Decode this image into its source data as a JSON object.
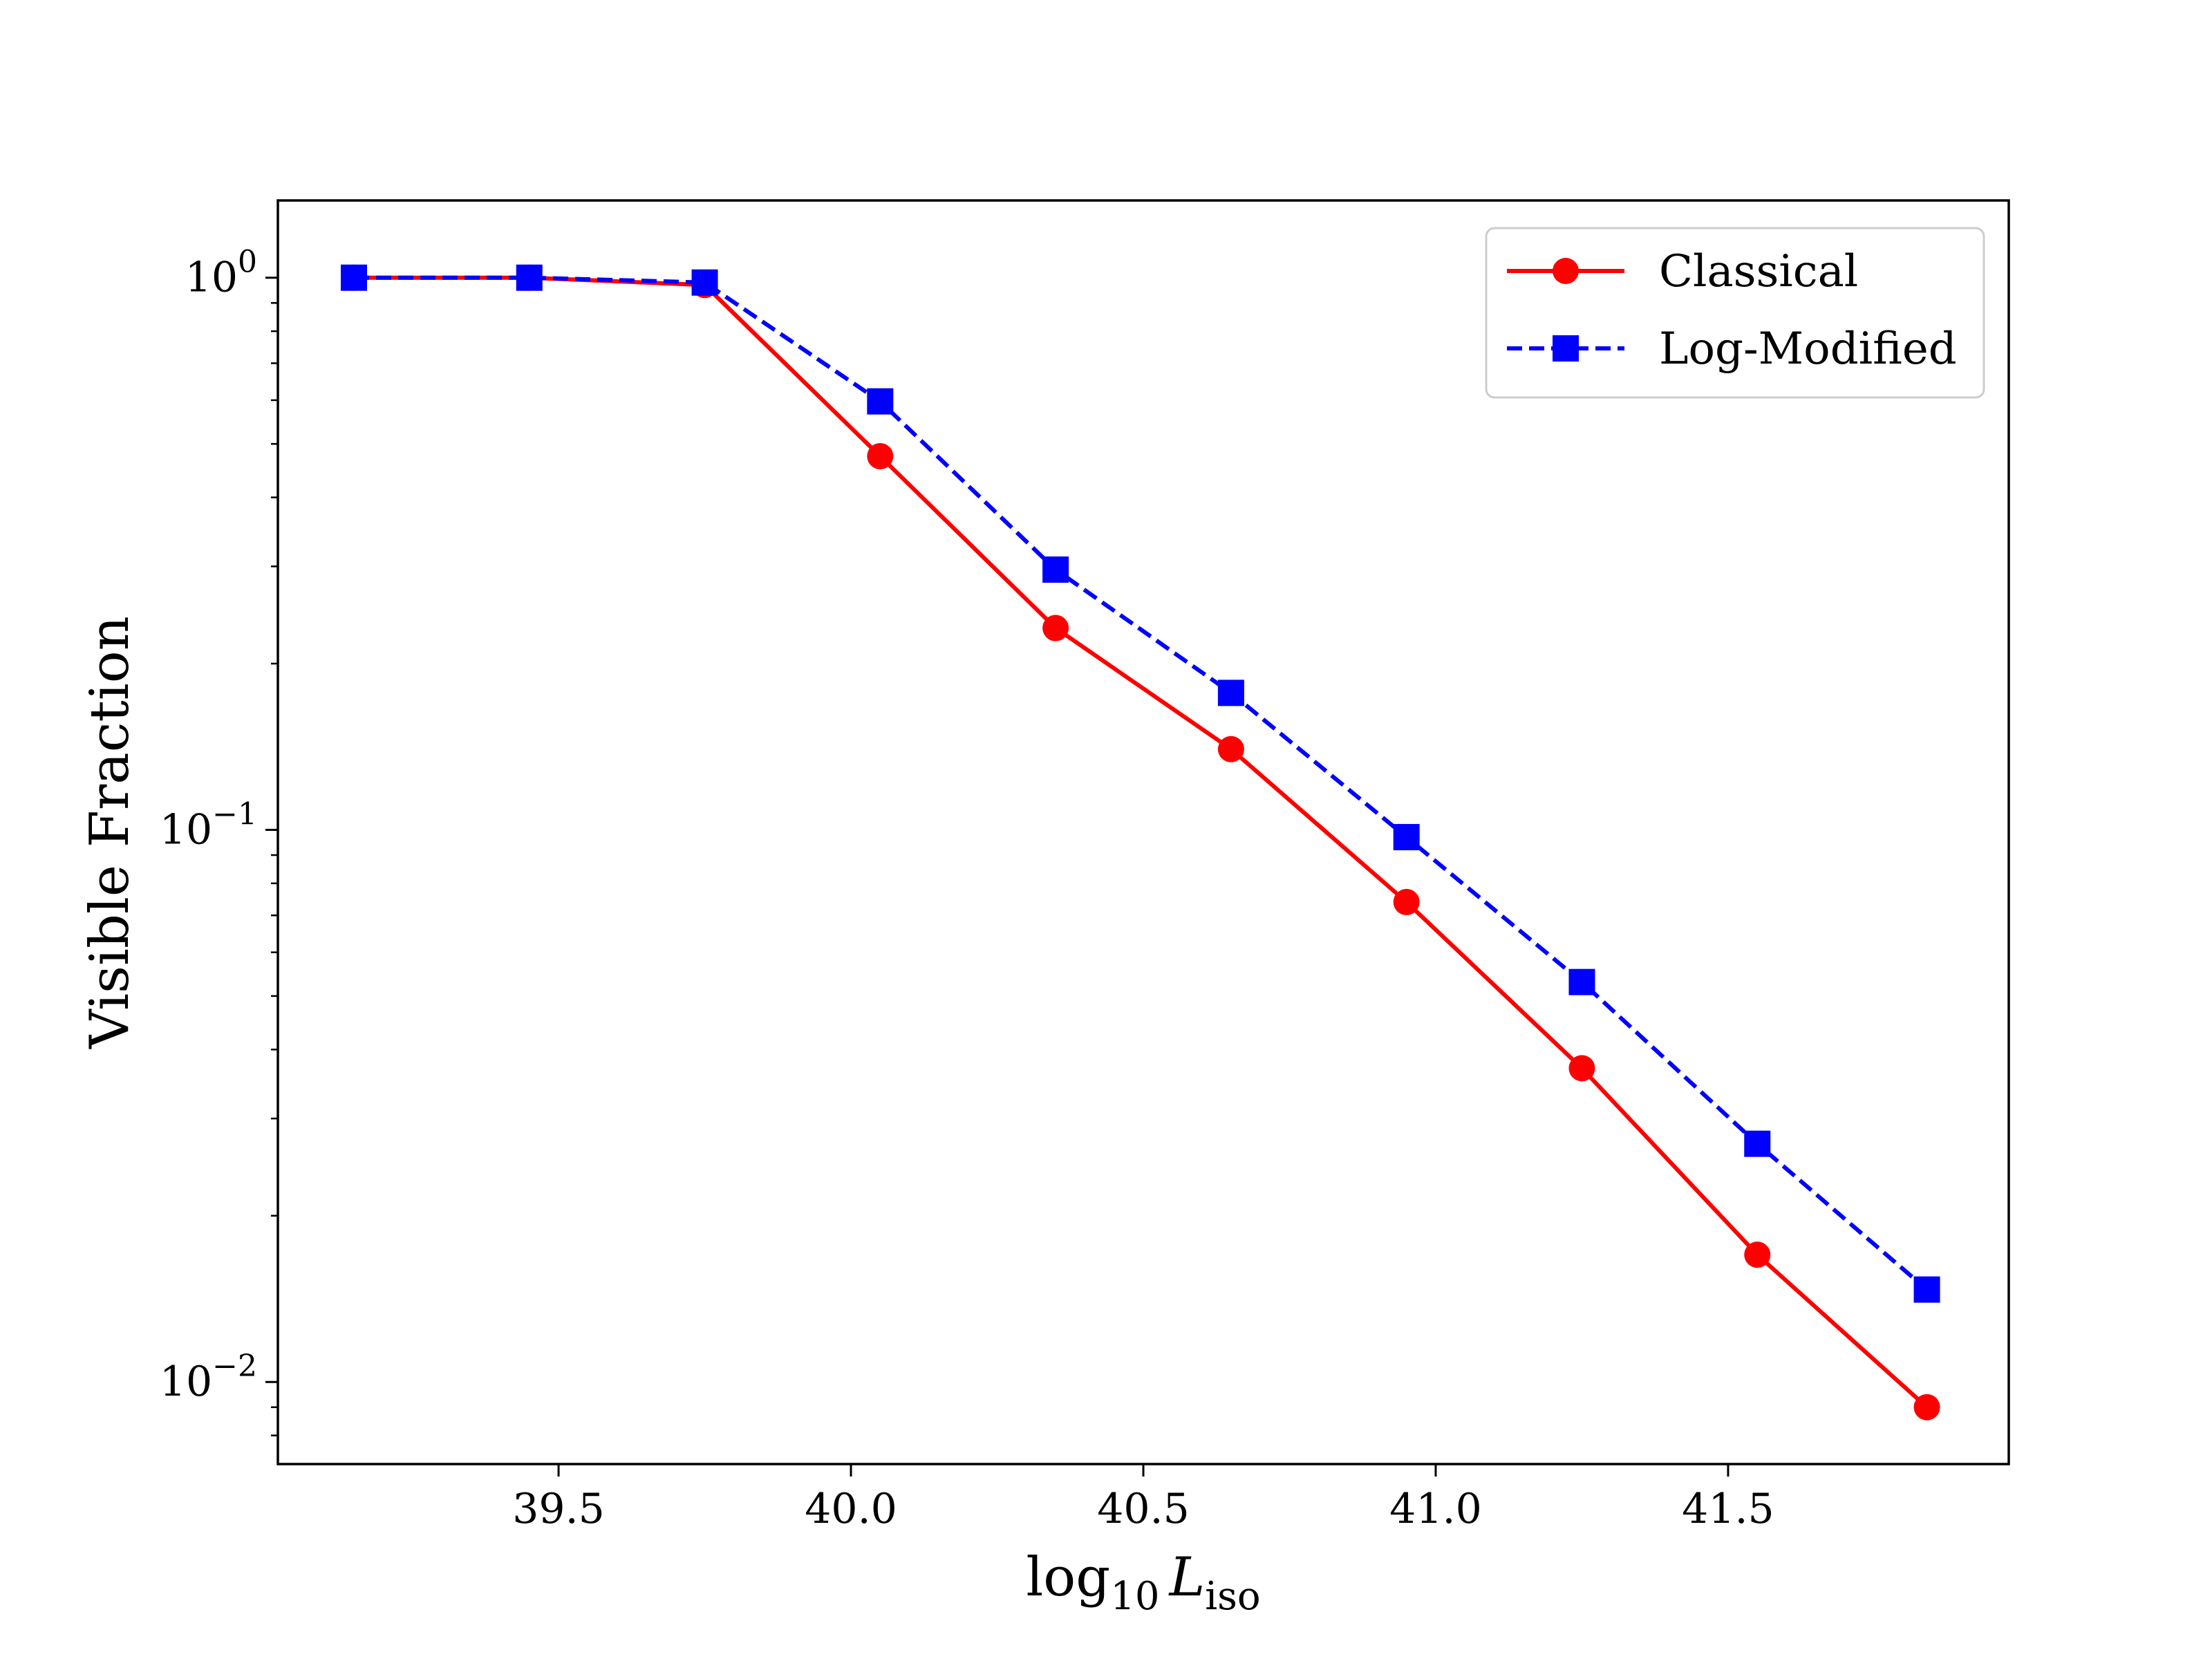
{
  "chart_data": {
    "type": "line",
    "title": "",
    "xlabel": {
      "base": "log",
      "sub1": "10",
      "var": "L",
      "sub2": "iso"
    },
    "ylabel": "Visible Fraction",
    "yscale": "log",
    "xlim": [
      39.02,
      41.98
    ],
    "ylim": [
      0.0071,
      1.38
    ],
    "xticks": [
      39.5,
      40.0,
      40.5,
      41.0,
      41.5
    ],
    "xtick_labels": [
      "39.5",
      "40.0",
      "40.5",
      "41.0",
      "41.5"
    ],
    "yticks": [
      {
        "value": 1,
        "base": "10",
        "exp": "0"
      },
      {
        "value": 0.1,
        "base": "10",
        "exp": "−1"
      },
      {
        "value": 0.01,
        "base": "10",
        "exp": "−2"
      }
    ],
    "grid": false,
    "legend_position": "upper right",
    "x": [
      39.15,
      39.45,
      39.75,
      40.05,
      40.35,
      40.65,
      40.95,
      41.25,
      41.55,
      41.84
    ],
    "series": [
      {
        "name": "Classical",
        "color": "#ff0000",
        "marker": "circle",
        "linestyle": "solid",
        "values": [
          1.0,
          1.0,
          0.97,
          0.475,
          0.232,
          0.14,
          0.074,
          0.037,
          0.017,
          0.009
        ]
      },
      {
        "name": "Log-Modified",
        "color": "#0000ff",
        "marker": "square",
        "linestyle": "dashed",
        "values": [
          1.0,
          1.0,
          0.98,
          0.597,
          0.296,
          0.177,
          0.097,
          0.053,
          0.027,
          0.0147
        ]
      }
    ]
  }
}
